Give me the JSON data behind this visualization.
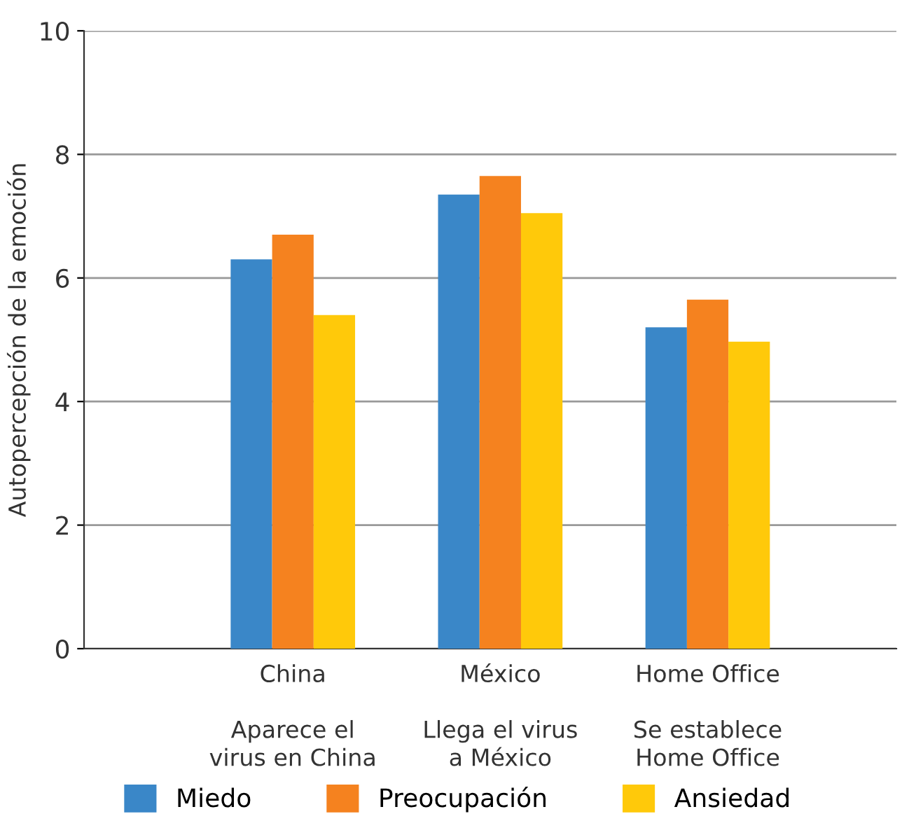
{
  "chart_data": {
    "type": "bar",
    "ylabel": "Autopercepción de la emoción",
    "categories": [
      "China\n\nAparece el\nvirus en China",
      "México\n\nLlega el virus\na México",
      "Home Office\n\nSe establece\nHome Office"
    ],
    "series": [
      {
        "name": "Miedo",
        "color": "#3a87c8",
        "values": [
          6.3,
          7.35,
          5.2
        ]
      },
      {
        "name": "Preocupación",
        "color": "#f5821f",
        "values": [
          6.7,
          7.65,
          5.65
        ]
      },
      {
        "name": "Ansiedad",
        "color": "#ffc90a",
        "values": [
          5.4,
          7.05,
          4.97
        ]
      }
    ],
    "ylim": [
      0,
      10
    ],
    "yticks": [
      0,
      2,
      4,
      6,
      8,
      10
    ],
    "grid": "y",
    "legend": "bottom"
  }
}
